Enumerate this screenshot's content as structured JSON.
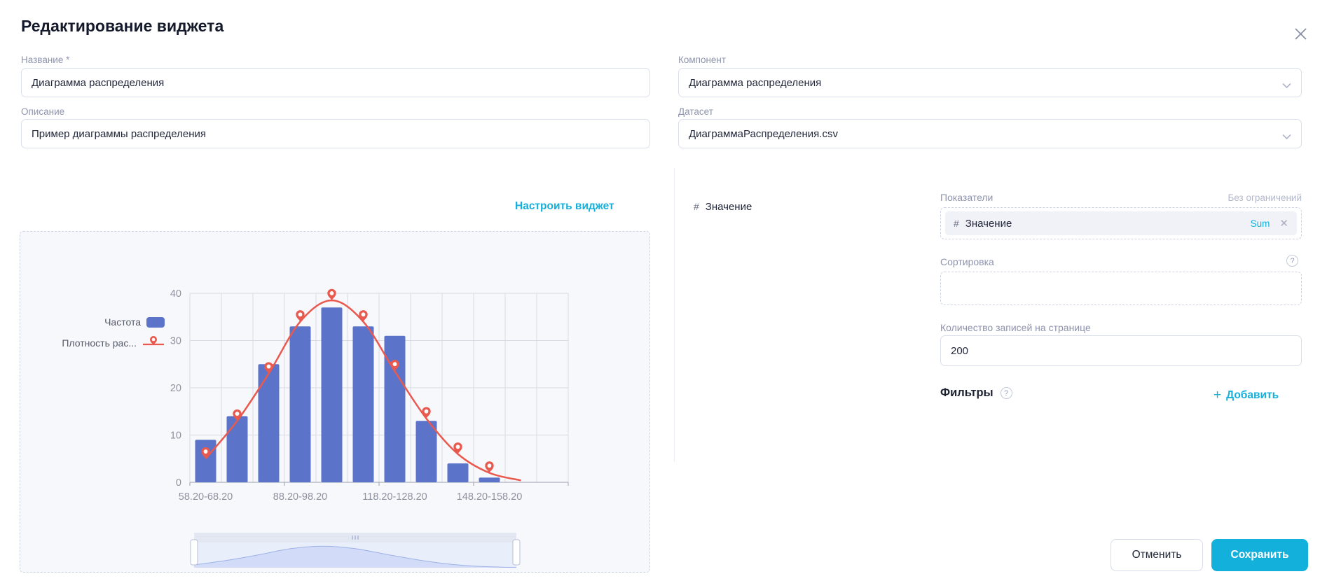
{
  "dialog": {
    "title": "Редактирование виджета"
  },
  "fields": {
    "name": {
      "label": "Название *",
      "value": "Диаграмма распределения"
    },
    "description": {
      "label": "Описание",
      "value": "Пример диаграммы распределения"
    },
    "component": {
      "label": "Компонент",
      "value": "Диаграмма распределения"
    },
    "dataset": {
      "label": "Датасет",
      "value": "ДиаграммаРаспределения.csv"
    }
  },
  "configure_link": "Настроить виджет",
  "available_fields": {
    "items": [
      {
        "icon": "#",
        "label": "Значение"
      }
    ]
  },
  "indicators": {
    "label": "Показатели",
    "limit_hint": "Без ограничений",
    "chips": [
      {
        "icon": "#",
        "label": "Значение",
        "aggregation": "Sum"
      }
    ]
  },
  "sorting": {
    "label": "Сортировка"
  },
  "page_size": {
    "label": "Количество записей на странице",
    "value": "200"
  },
  "filters": {
    "label": "Фильтры",
    "add_label": "Добавить",
    "plus": "+"
  },
  "footer": {
    "cancel": "Отменить",
    "save": "Сохранить"
  },
  "colors": {
    "accent": "#14b0dc",
    "bar": "#5b74c9",
    "line": "#e9594e",
    "grid": "#d7dae2",
    "axis": "#9ba1ac",
    "axis_text": "#8d929e",
    "slider_area_fill": "#d2dcf8",
    "slider_area_line": "#9db1e4"
  },
  "chart_data": {
    "type": "bar",
    "title": "",
    "xlabel": "",
    "ylabel": "",
    "ylim": [
      0,
      40
    ],
    "yticks": [
      0,
      10,
      20,
      30,
      40
    ],
    "grid": true,
    "legend_position": "left",
    "visible_x_labels": [
      "58.20-68.20",
      "88.20-98.20",
      "118.20-128.20",
      "148.20-158.20"
    ],
    "x_label_positions": [
      1,
      4,
      7,
      10
    ],
    "series": [
      {
        "name": "Частота",
        "type": "bar",
        "values": [
          9,
          14,
          25,
          33,
          37,
          33,
          31,
          13,
          4,
          1
        ]
      },
      {
        "name": "Плотность рас...",
        "type": "line",
        "values": [
          5,
          13,
          23,
          34,
          38.5,
          34,
          23.5,
          13.5,
          6,
          2
        ]
      }
    ],
    "has_zoom_slider": true
  }
}
